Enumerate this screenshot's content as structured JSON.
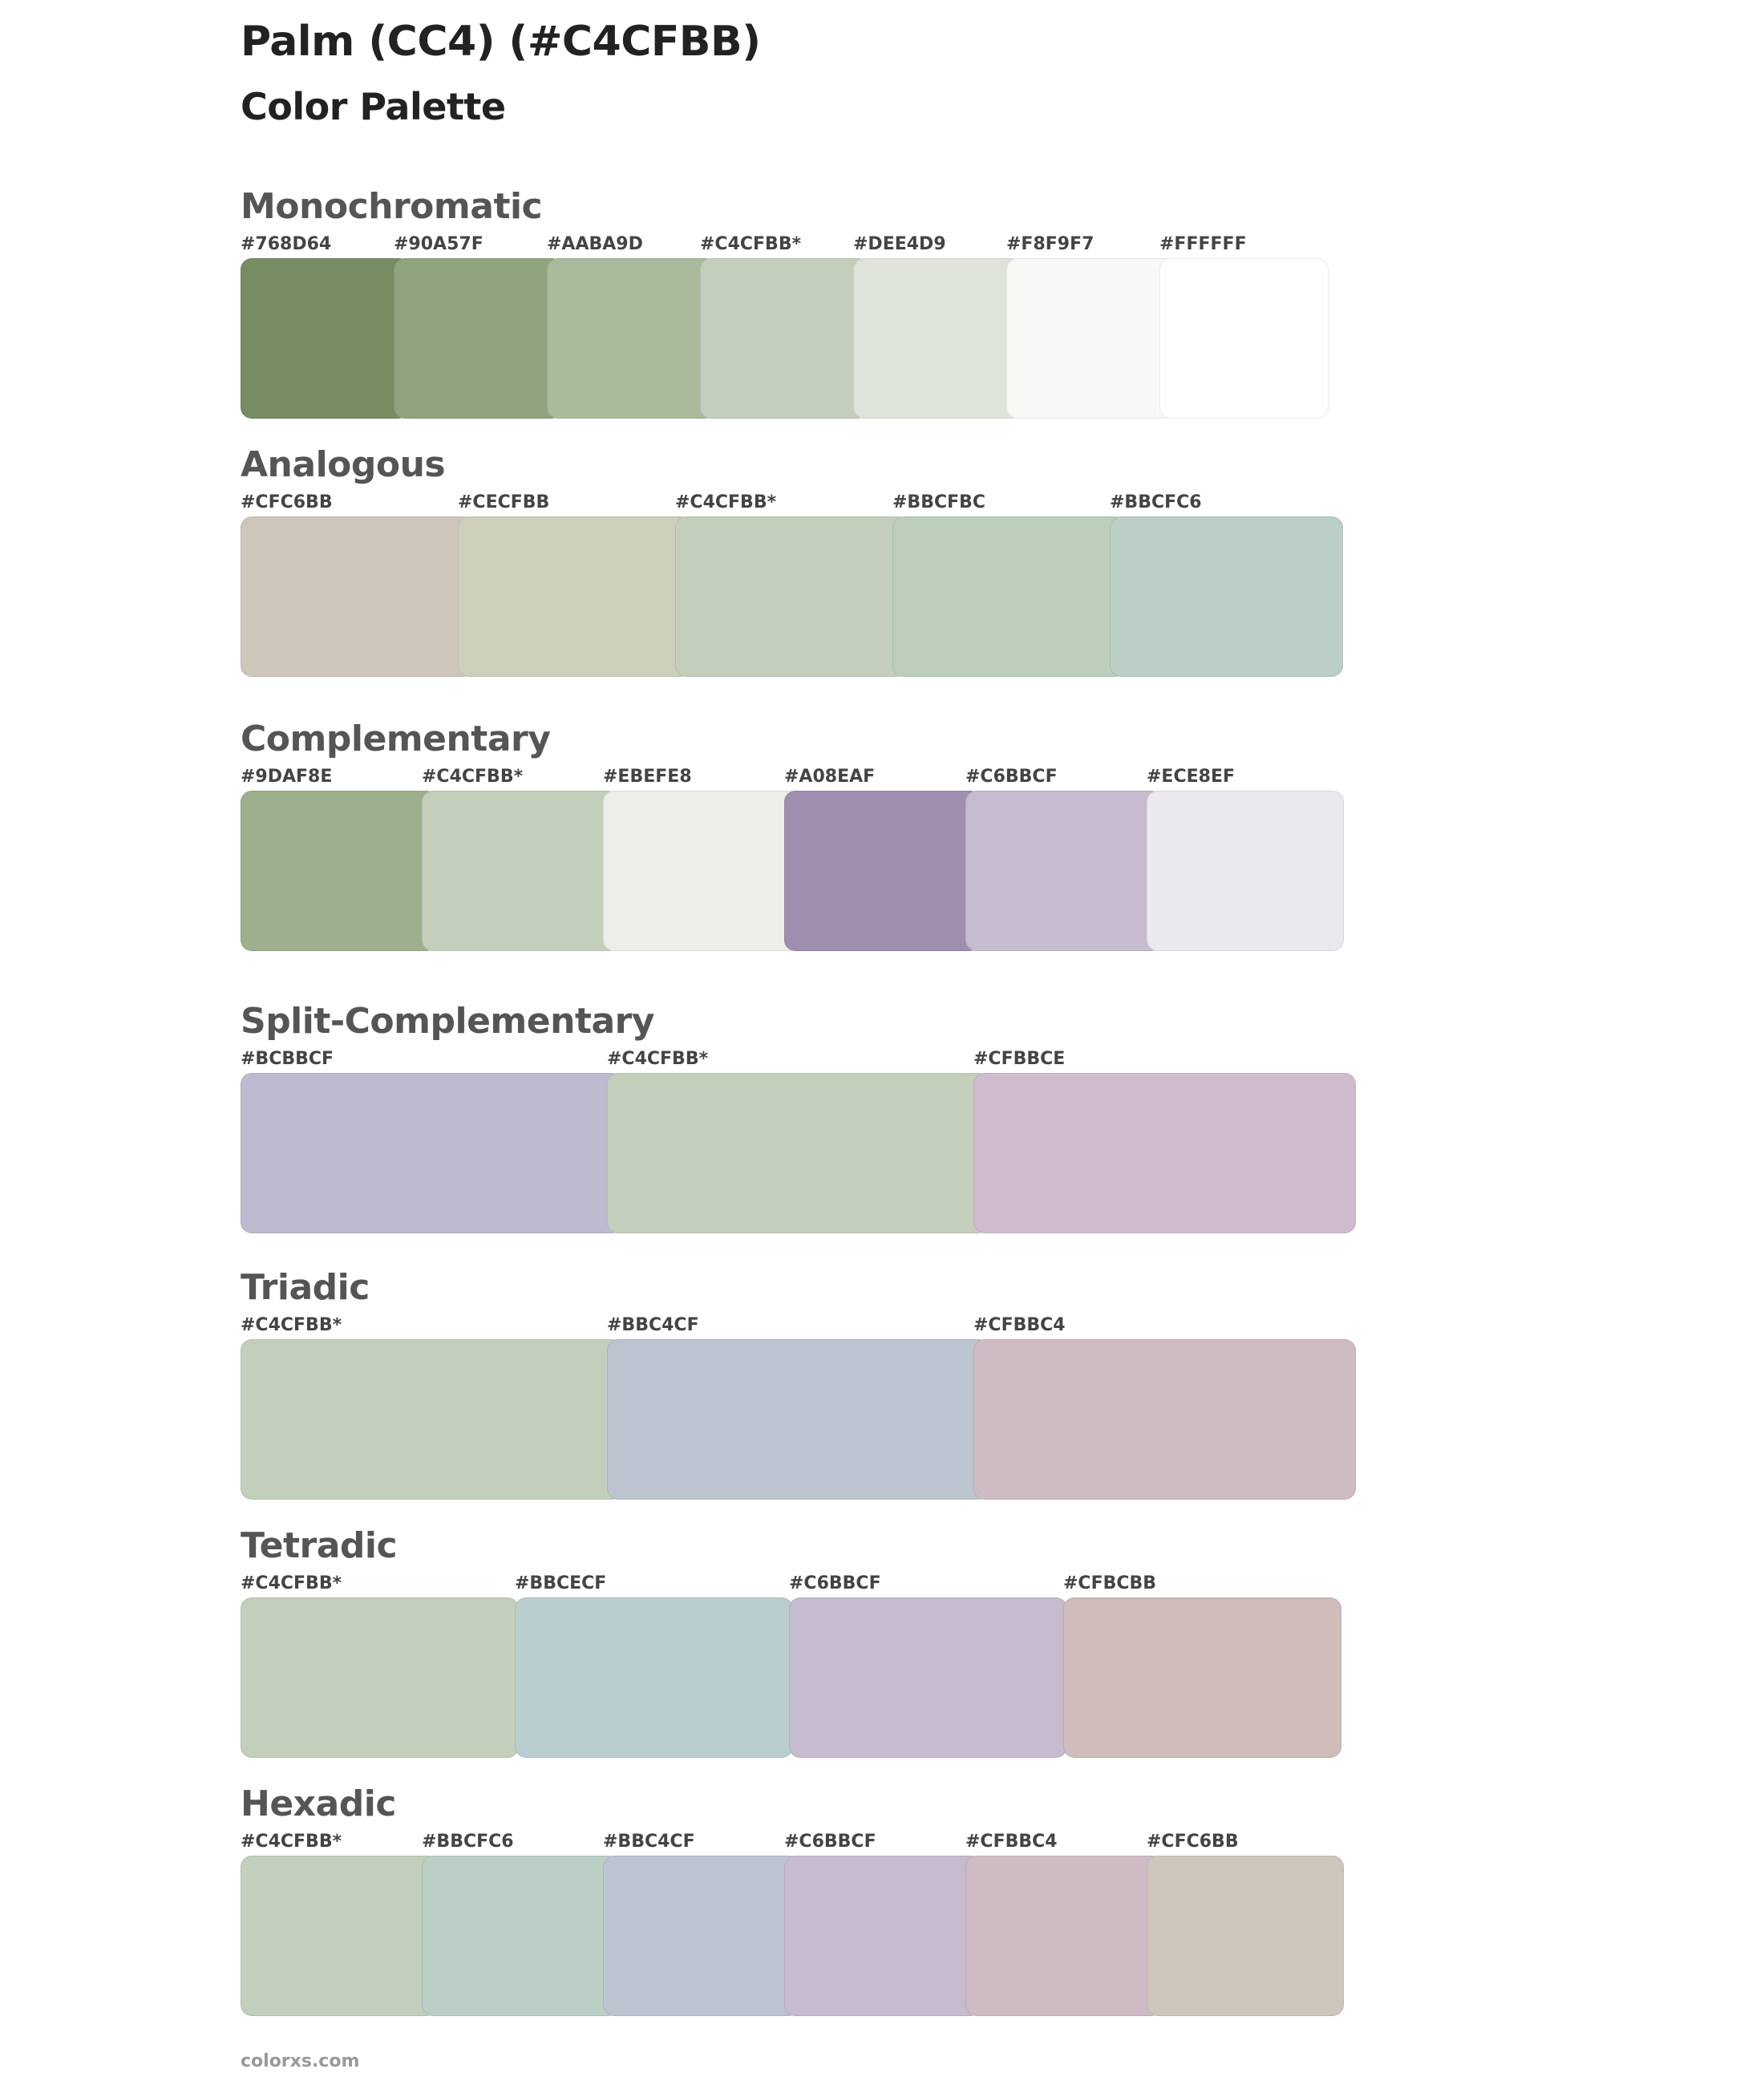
{
  "title": "Palm (CC4) (#C4CFBB)",
  "subtitle": "Color Palette",
  "footer": "colorxs.com",
  "sections": [
    {
      "name": "Monochromatic",
      "swatches": [
        {
          "label": "#768D64",
          "color": "#768D64"
        },
        {
          "label": "#90A57F",
          "color": "#90A57F"
        },
        {
          "label": "#AABA9D",
          "color": "#AABA9D"
        },
        {
          "label": "#C4CFBB*",
          "color": "#C4CFBB"
        },
        {
          "label": "#DEE4D9",
          "color": "#DEE4D9"
        },
        {
          "label": "#F8F9F7",
          "color": "#F8F9F7"
        },
        {
          "label": "#FFFFFF",
          "color": "#FFFFFF"
        }
      ]
    },
    {
      "name": "Analogous",
      "swatches": [
        {
          "label": "#CFC6BB",
          "color": "#CFC6BB"
        },
        {
          "label": "#CECFBB",
          "color": "#CECFBB"
        },
        {
          "label": "#C4CFBB*",
          "color": "#C4CFBB"
        },
        {
          "label": "#BBCFBC",
          "color": "#BBCFBC"
        },
        {
          "label": "#BBCFC6",
          "color": "#BBCFC6"
        }
      ]
    },
    {
      "name": "Complementary",
      "swatches": [
        {
          "label": "#9DAF8E",
          "color": "#9DAF8E"
        },
        {
          "label": "#C4CFBB*",
          "color": "#C4CFBB"
        },
        {
          "label": "#EBEFE8",
          "color": "#EBEFE8"
        },
        {
          "label": "#A08EAF",
          "color": "#A08EAF"
        },
        {
          "label": "#C6BBCF",
          "color": "#C6BBCF"
        },
        {
          "label": "#ECE8EF",
          "color": "#ECE8EF"
        }
      ]
    },
    {
      "name": "Split-Complementary",
      "swatches": [
        {
          "label": "#BCBBCF",
          "color": "#BCBBCF"
        },
        {
          "label": "#C4CFBB*",
          "color": "#C4CFBB"
        },
        {
          "label": "#CFBBCE",
          "color": "#CFBBCE"
        }
      ]
    },
    {
      "name": "Triadic",
      "swatches": [
        {
          "label": "#C4CFBB*",
          "color": "#C4CFBB"
        },
        {
          "label": "#BBC4CF",
          "color": "#BBC4CF"
        },
        {
          "label": "#CFBBC4",
          "color": "#CFBBC4"
        }
      ]
    },
    {
      "name": "Tetradic",
      "swatches": [
        {
          "label": "#C4CFBB*",
          "color": "#C4CFBB"
        },
        {
          "label": "#BBCECF",
          "color": "#BBCECF"
        },
        {
          "label": "#C6BBCF",
          "color": "#C6BBCF"
        },
        {
          "label": "#CFBCBB",
          "color": "#CFBCBB"
        }
      ]
    },
    {
      "name": "Hexadic",
      "swatches": [
        {
          "label": "#C4CFBB*",
          "color": "#C4CFBB"
        },
        {
          "label": "#BBCFC6",
          "color": "#BBCFC6"
        },
        {
          "label": "#BBC4CF",
          "color": "#BBC4CF"
        },
        {
          "label": "#C6BBCF",
          "color": "#C6BBCF"
        },
        {
          "label": "#CFBBC4",
          "color": "#CFBBC4"
        },
        {
          "label": "#CFC6BB",
          "color": "#CFC6BB"
        }
      ]
    }
  ]
}
